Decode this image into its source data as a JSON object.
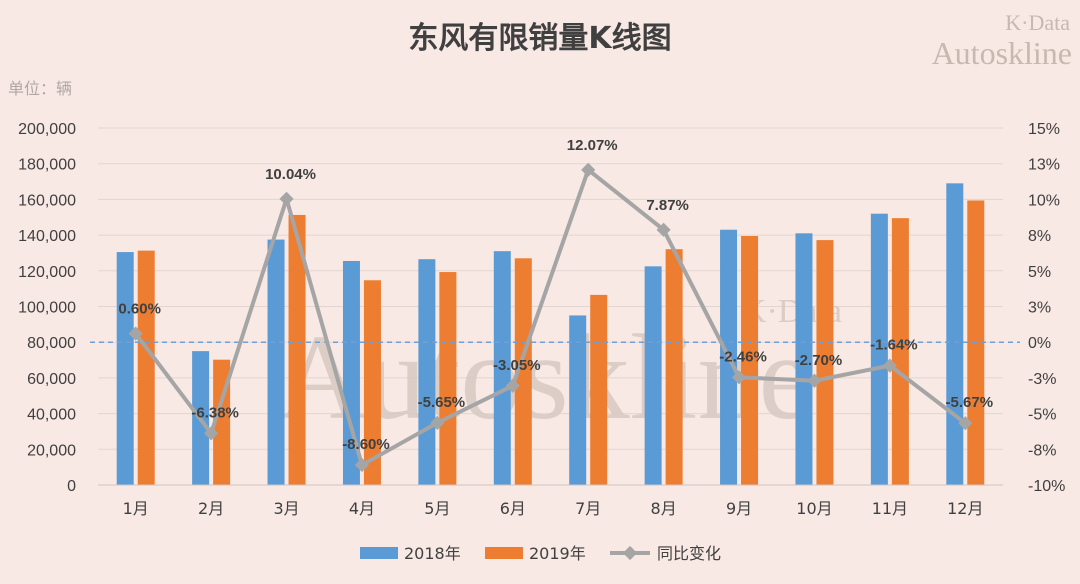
{
  "chart_data": {
    "type": "bar",
    "title": "东风有限销量K线图",
    "unit_label": "单位：辆",
    "watermark": {
      "line1": "K·Data",
      "line2": "Autoskline"
    },
    "categories": [
      "1月",
      "2月",
      "3月",
      "4月",
      "5月",
      "6月",
      "7月",
      "8月",
      "9月",
      "10月",
      "11月",
      "12月"
    ],
    "series": [
      {
        "name": "2018年",
        "type": "bar",
        "axis": "left",
        "color": "#5b9bd5",
        "values": [
          130500,
          75000,
          137500,
          125500,
          126500,
          131000,
          95000,
          122500,
          143000,
          141000,
          152000,
          169000
        ]
      },
      {
        "name": "2019年",
        "type": "bar",
        "axis": "left",
        "color": "#ed7d31",
        "values": [
          131300,
          70200,
          151300,
          114700,
          119300,
          127000,
          106500,
          132100,
          139500,
          137200,
          149500,
          159400
        ]
      },
      {
        "name": "同比变化",
        "type": "line",
        "axis": "right",
        "color": "#a5a5a5",
        "values": [
          0.6,
          -6.38,
          10.04,
          -8.6,
          -5.65,
          -3.05,
          12.07,
          7.87,
          -2.46,
          -2.7,
          -1.64,
          -5.67
        ],
        "labels": [
          "0.60%",
          "-6.38%",
          "10.04%",
          "-8.60%",
          "-5.65%",
          "-3.05%",
          "12.07%",
          "7.87%",
          "-2.46%",
          "-2.70%",
          "-1.64%",
          "-5.67%"
        ]
      }
    ],
    "ylim": [
      0,
      200000
    ],
    "yticks": [
      "200,000",
      "180,000",
      "160,000",
      "140,000",
      "120,000",
      "100,000",
      "80,000",
      "60,000",
      "40,000",
      "20,000",
      "0"
    ],
    "y2lim": [
      -10,
      15
    ],
    "y2ticks": [
      "15%",
      "13%",
      "10%",
      "8%",
      "5%",
      "3%",
      "0%",
      "-3%",
      "-5%",
      "-8%",
      "-10%"
    ],
    "grid": true,
    "legend_position": "bottom"
  }
}
